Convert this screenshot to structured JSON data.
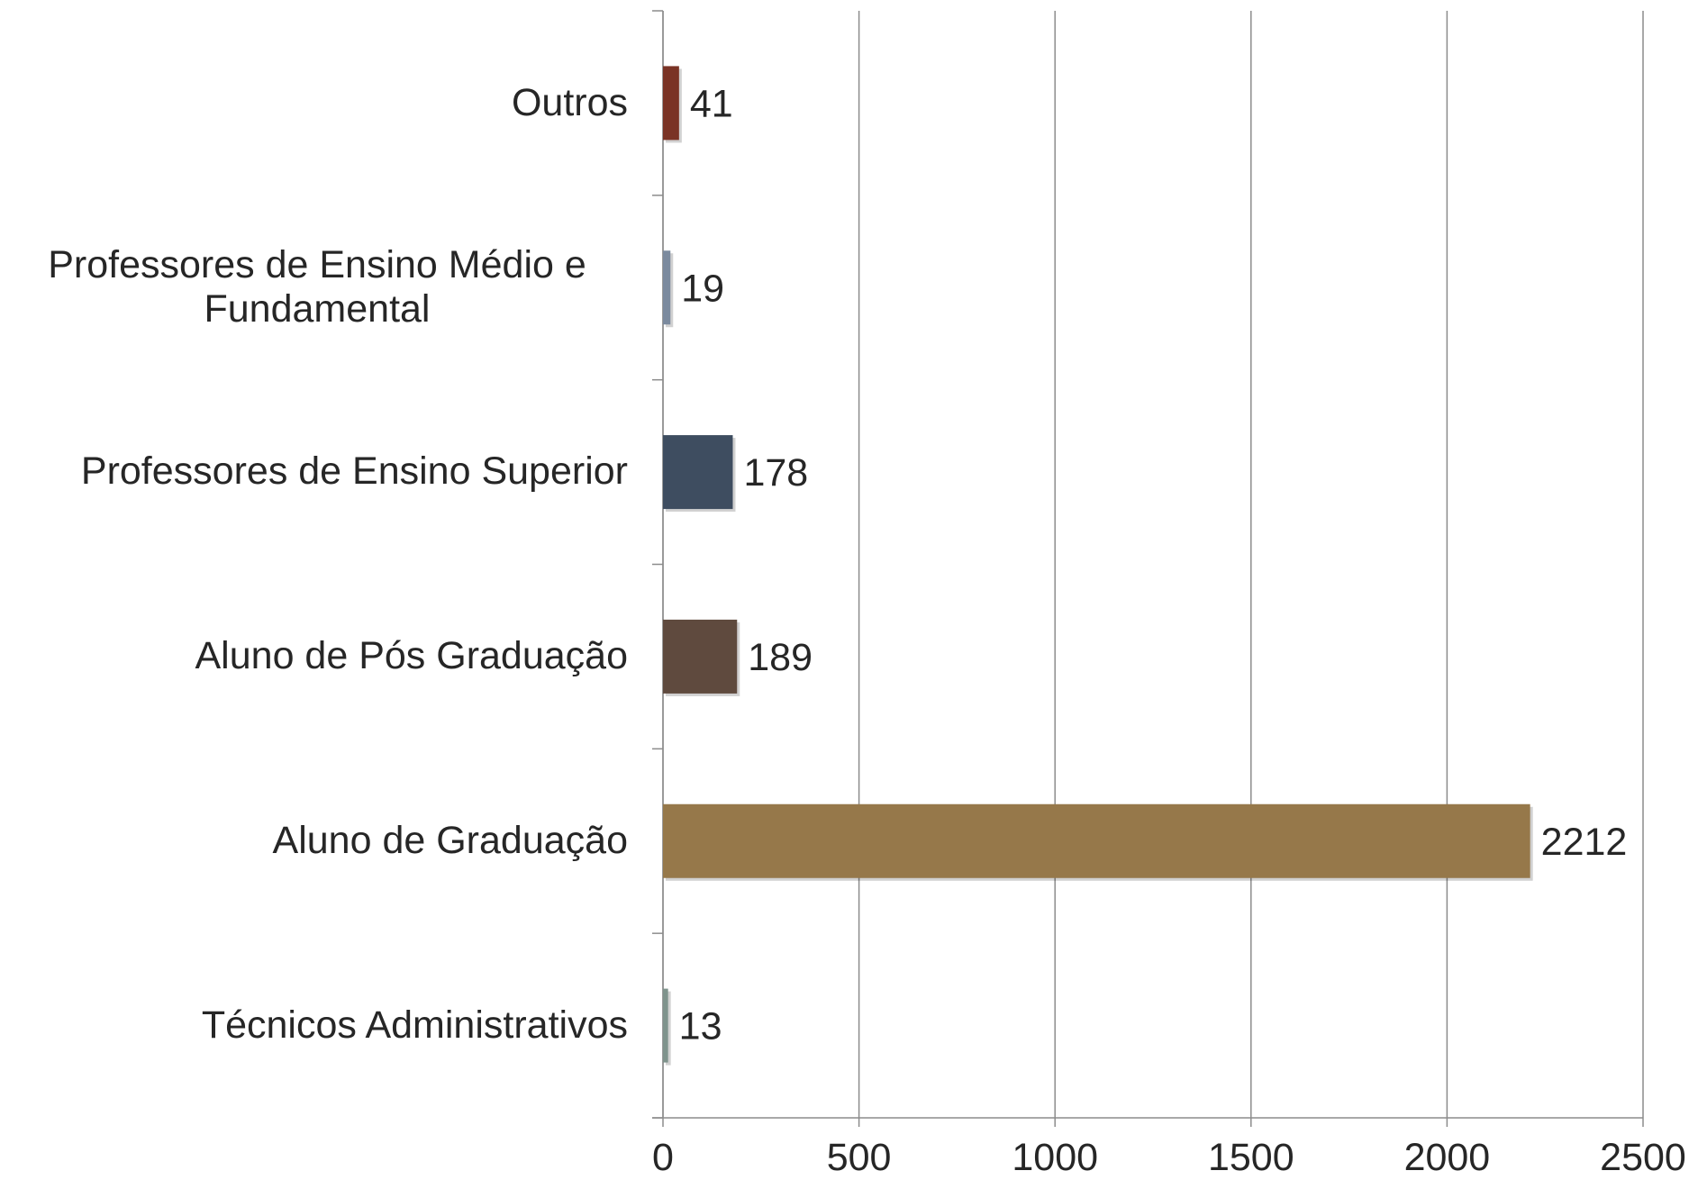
{
  "chart_data": {
    "type": "barh",
    "categories": [
      "Outros",
      "Professores de Ensino Médio e Fundamental",
      "Professores de Ensino Superior",
      "Aluno de Pós Graduação",
      "Aluno de Graduação",
      "Técnicos Administrativos"
    ],
    "values": [
      41,
      19,
      178,
      189,
      2212,
      13
    ],
    "colors": [
      "#7a3325",
      "#7b8a9e",
      "#3e4d60",
      "#5f4a3e",
      "#96784a",
      "#7f938c"
    ],
    "xlim": [
      0,
      2500
    ],
    "xticks": [
      0,
      500,
      1000,
      1500,
      2000,
      2500
    ],
    "grid": true
  }
}
